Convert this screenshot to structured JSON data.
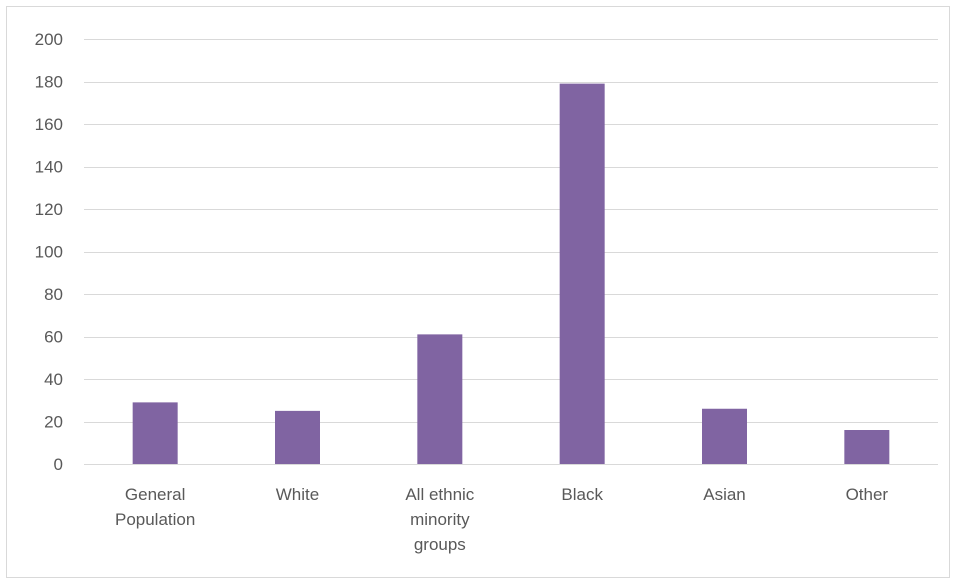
{
  "chart_data": {
    "type": "bar",
    "categories": [
      [
        "General",
        "Population"
      ],
      [
        "White"
      ],
      [
        "All ethnic",
        "minority",
        "groups"
      ],
      [
        "Black"
      ],
      [
        "Asian"
      ],
      [
        "Other"
      ]
    ],
    "values": [
      29,
      25,
      61,
      179,
      26,
      16
    ],
    "ylim": [
      0,
      200
    ],
    "yticks": [
      0,
      20,
      40,
      60,
      80,
      100,
      120,
      140,
      160,
      180,
      200
    ],
    "grid": true,
    "legend": "none",
    "bar_color": "#8064a2",
    "grid_color": "#d9d9d9",
    "title": "",
    "xlabel": "",
    "ylabel": ""
  }
}
